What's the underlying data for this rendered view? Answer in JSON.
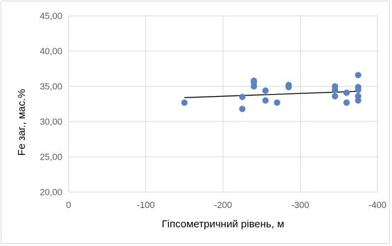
{
  "chart_data": {
    "type": "scatter",
    "xlabel": "Гіпсометричний рівень, м",
    "ylabel": "Fe  заг., мас.%",
    "xlim": [
      0,
      -400
    ],
    "ylim": [
      20,
      45
    ],
    "x_ticks": [
      0,
      -100,
      -200,
      -300,
      -400
    ],
    "y_ticks": [
      20,
      25,
      30,
      35,
      40,
      45
    ],
    "x_tick_labels": [
      "0",
      "-100",
      "-200",
      "-300",
      "-400"
    ],
    "y_tick_labels": [
      "20,00",
      "25,00",
      "30,00",
      "35,00",
      "40,00",
      "45,00"
    ],
    "grid": "vertical and horizontal",
    "series": [
      {
        "points": [
          {
            "x": -150,
            "y": 32.7
          },
          {
            "x": -225,
            "y": 33.5
          },
          {
            "x": -225,
            "y": 31.8
          },
          {
            "x": -240,
            "y": 35.8
          },
          {
            "x": -240,
            "y": 35.5
          },
          {
            "x": -240,
            "y": 35.0
          },
          {
            "x": -255,
            "y": 34.4
          },
          {
            "x": -255,
            "y": 33.0
          },
          {
            "x": -270,
            "y": 32.7
          },
          {
            "x": -285,
            "y": 35.2
          },
          {
            "x": -285,
            "y": 34.9
          },
          {
            "x": -345,
            "y": 35.0
          },
          {
            "x": -345,
            "y": 34.5
          },
          {
            "x": -345,
            "y": 33.6
          },
          {
            "x": -360,
            "y": 34.1
          },
          {
            "x": -360,
            "y": 32.7
          },
          {
            "x": -375,
            "y": 36.6
          },
          {
            "x": -375,
            "y": 34.9
          },
          {
            "x": -375,
            "y": 34.5
          },
          {
            "x": -375,
            "y": 33.6
          },
          {
            "x": -375,
            "y": 33.0
          }
        ],
        "color": "#5b83c2"
      }
    ],
    "trendline": {
      "x": [
        -150,
        -375
      ],
      "y": [
        33.4,
        34.3
      ],
      "color": "#000000"
    }
  }
}
